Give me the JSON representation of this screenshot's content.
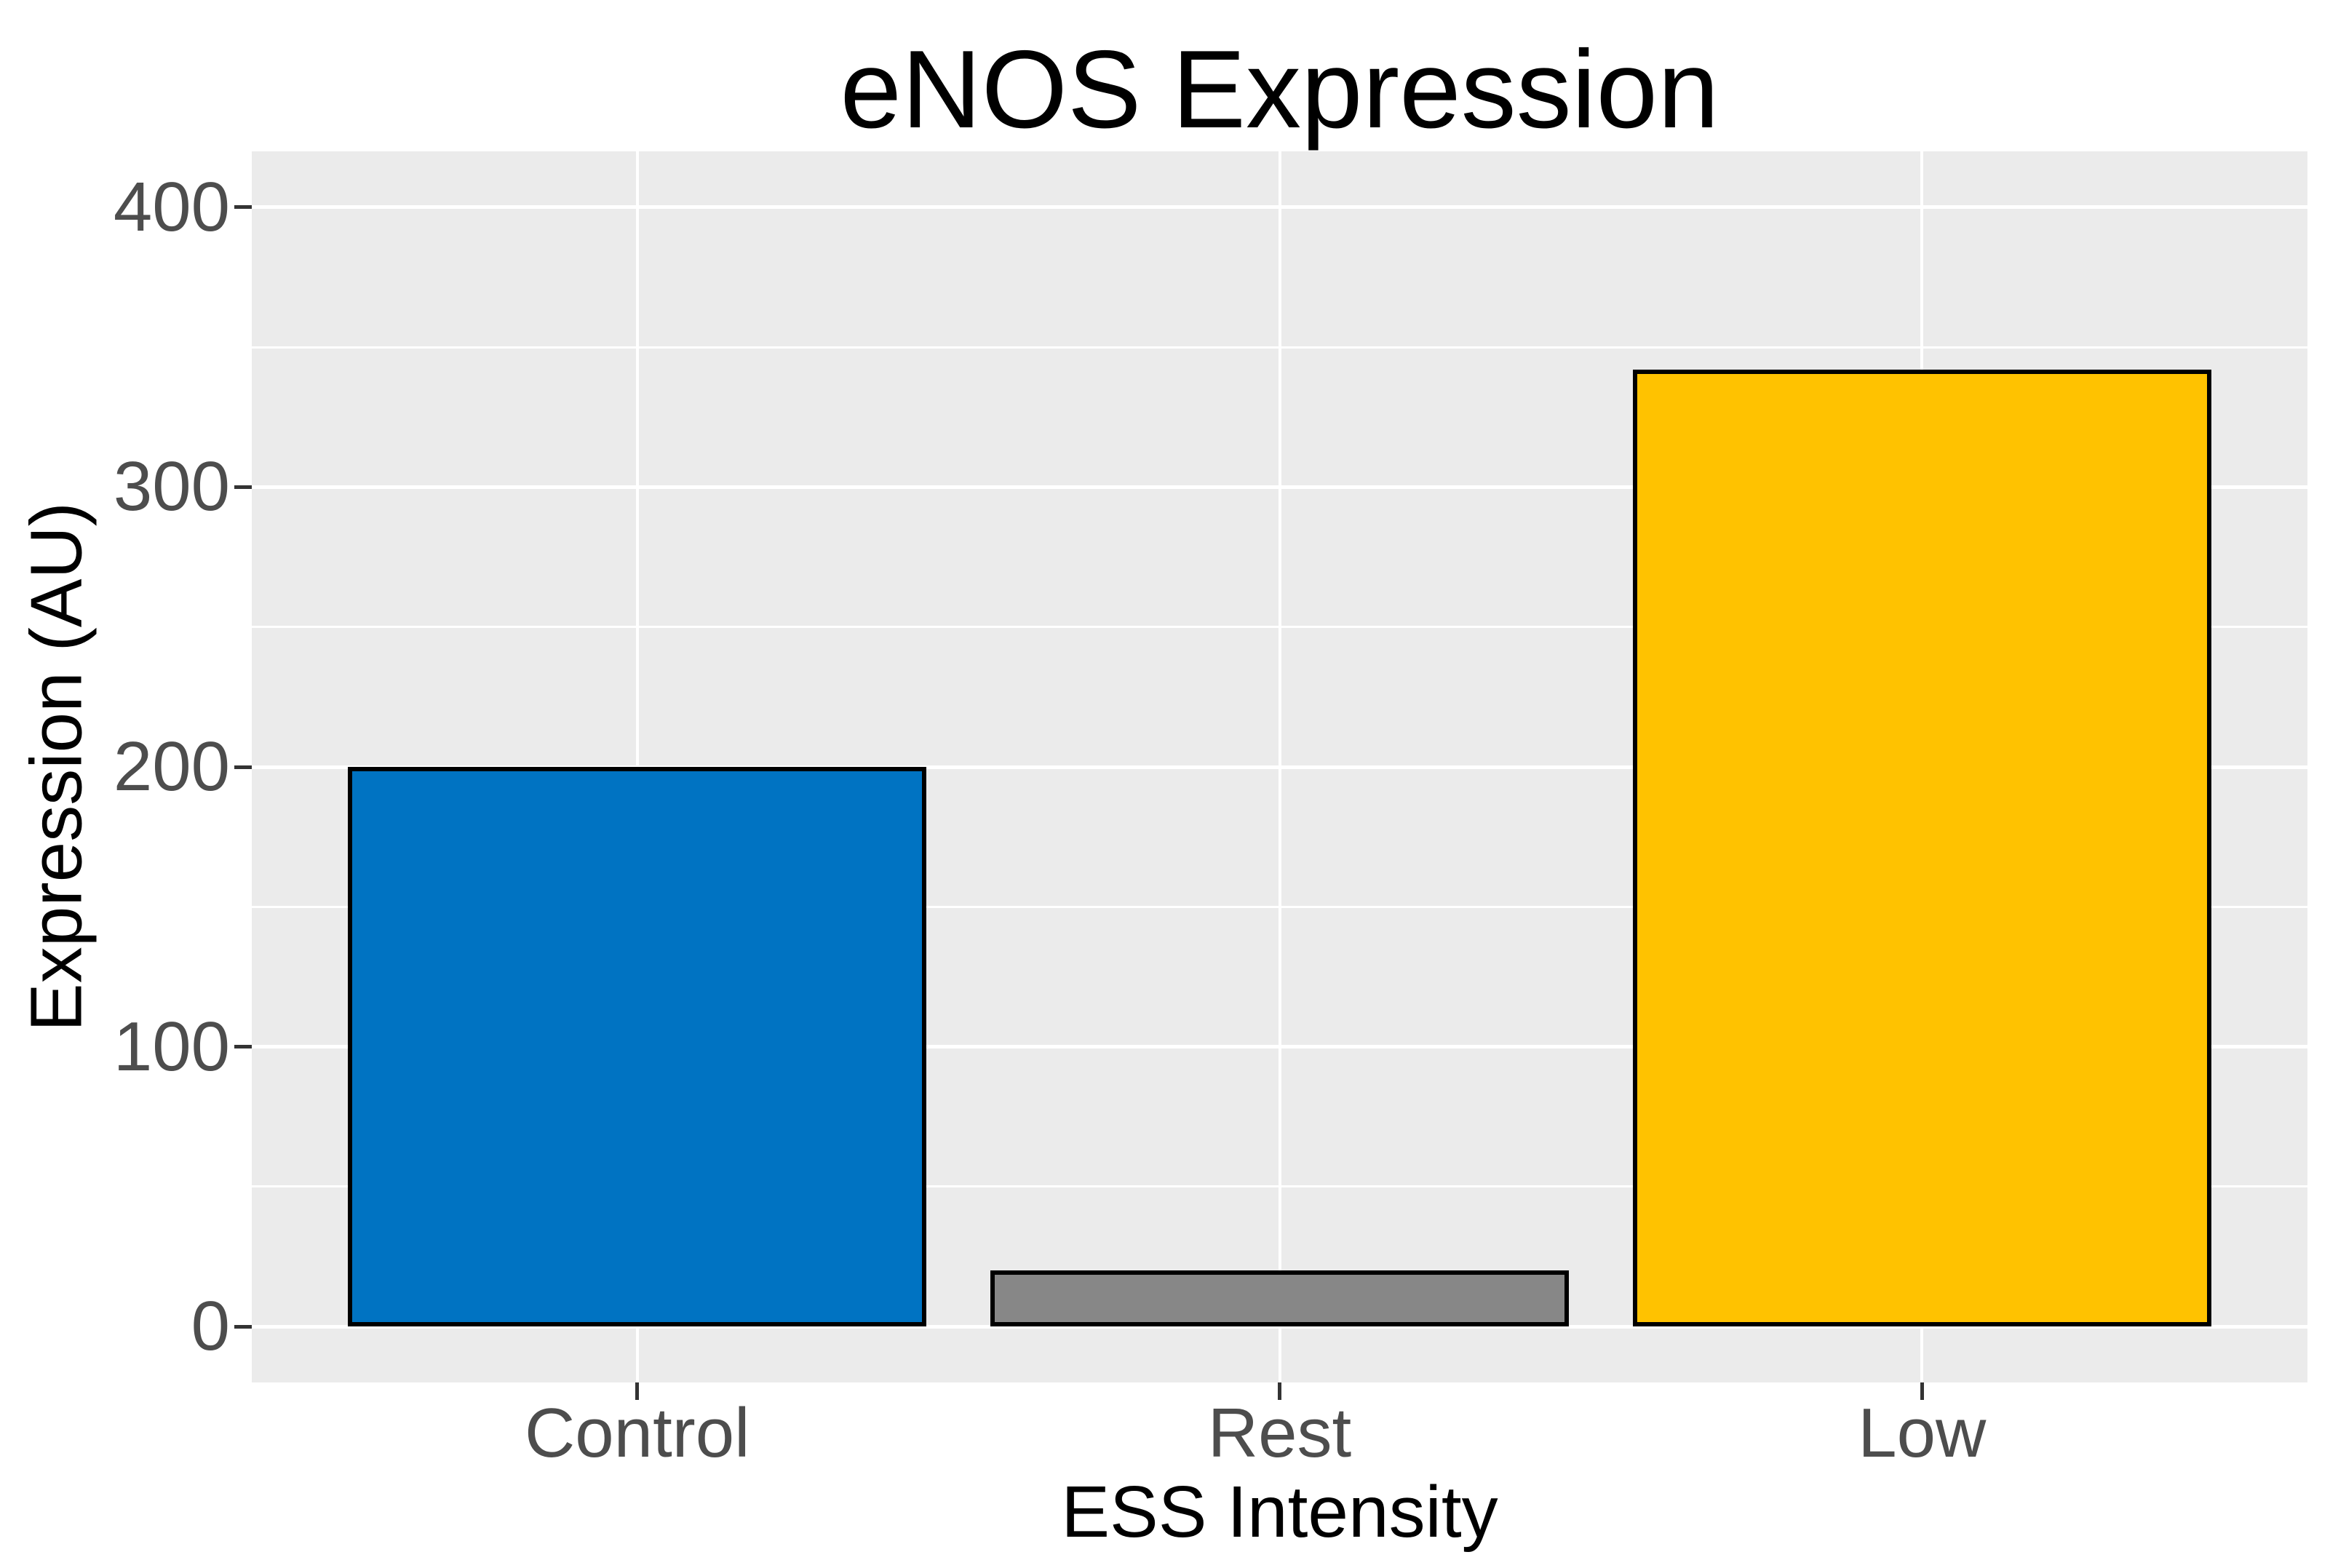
{
  "title": "eNOS Expression",
  "chart_data": {
    "type": "bar",
    "title": "eNOS Expression",
    "xlabel": "ESS Intensity",
    "ylabel": "Expression (AU)",
    "categories": [
      "Control",
      "Rest",
      "Low"
    ],
    "values": [
      200,
      20,
      342
    ],
    "bar_colors": [
      "#0073C2",
      "#878787",
      "#FFC200"
    ],
    "bar_outline_color": "#000000",
    "ylim": [
      0,
      400
    ],
    "yticks": [
      0,
      100,
      200,
      300,
      400
    ],
    "yticks_minor": [
      50,
      150,
      250,
      350
    ],
    "grid": "white major and minor horizontal lines plus vertical lines at category centers, on gray panel",
    "legend": "none",
    "panel_background": "#EBEBEB",
    "gridline_color": "#FFFFFF",
    "tick_mark_color": "#333333",
    "tick_label_color": "#4D4D4D",
    "axis_title_color": "#000000",
    "title_color": "#000000"
  }
}
